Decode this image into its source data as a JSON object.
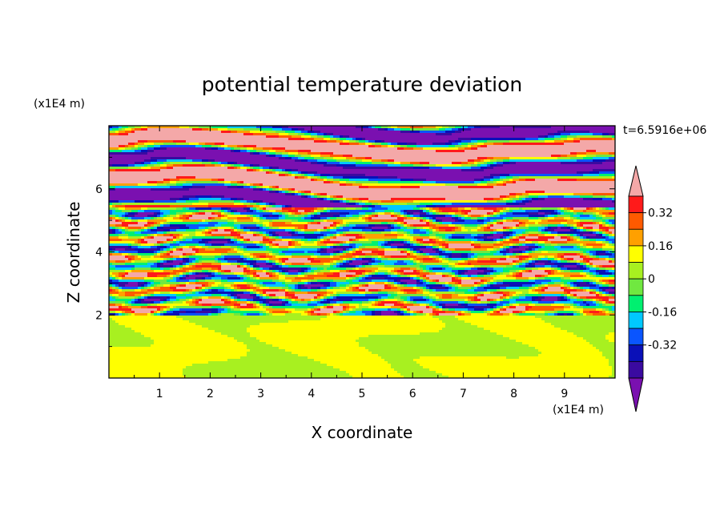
{
  "chart_data": {
    "type": "heatmap",
    "title": "potential temperature deviation",
    "xlabel": "X coordinate",
    "ylabel": "Z coordinate",
    "x_unit": "(x1E4 m)",
    "y_unit": "(x1E4 m)",
    "time_label": "t=6.5916e+06",
    "xlim": [
      0,
      10
    ],
    "ylim": [
      0,
      8
    ],
    "x_ticks": [
      "1",
      "2",
      "3",
      "4",
      "5",
      "6",
      "7",
      "8",
      "9"
    ],
    "y_ticks": [
      "2",
      "4",
      "6"
    ],
    "colorbar": {
      "levels": [
        -0.48,
        -0.4,
        -0.32,
        -0.24,
        -0.16,
        -0.08,
        0,
        0.08,
        0.16,
        0.24,
        0.32,
        0.4,
        0.48
      ],
      "tick_labels": [
        "0.32",
        "0.16",
        "0",
        "-0.16",
        "-0.32"
      ],
      "tick_values": [
        0.32,
        0.16,
        0,
        -0.16,
        -0.32
      ],
      "colors": [
        "#7a10b0",
        "#3a0aa0",
        "#0a10b8",
        "#0a55ff",
        "#00c8ff",
        "#00f070",
        "#70e840",
        "#a8f020",
        "#ffff00",
        "#ffa000",
        "#ff5a00",
        "#ff1a1a",
        "#f4a8a8"
      ],
      "extend": "both"
    },
    "layers": [
      {
        "z_range": [
          0,
          2
        ],
        "description_value": "near zero",
        "dominant": [
          0,
          0.08
        ]
      },
      {
        "z_range": [
          2,
          5.5
        ],
        "description_value": "oscillating",
        "dominant": [
          -0.48,
          0.48
        ]
      },
      {
        "z_range": [
          5.5,
          8
        ],
        "description_value": "banded extremes",
        "dominant": [
          -0.48,
          0.48
        ]
      }
    ]
  }
}
